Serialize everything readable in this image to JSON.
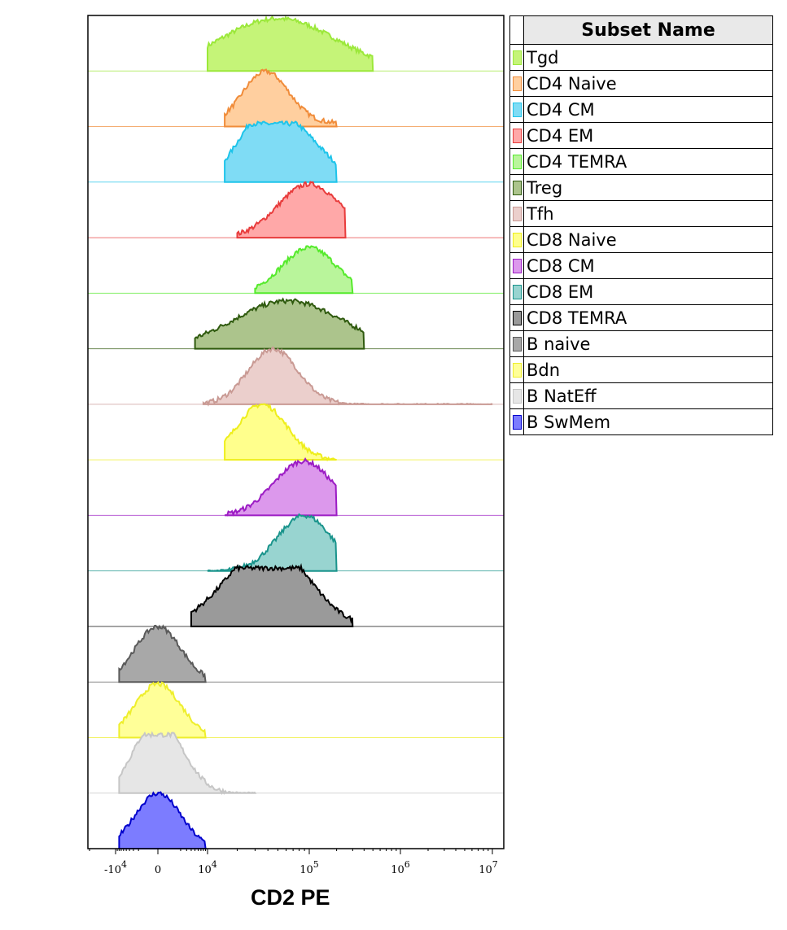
{
  "chart_data": {
    "type": "histogram",
    "xlabel": "CD2 PE",
    "x_scale": "biexponential",
    "x_ticks": [
      {
        "base": "-10",
        "exp": "4",
        "value": -10000
      },
      {
        "base": "0",
        "exp": "",
        "value": 0
      },
      {
        "base": "10",
        "exp": "4",
        "value": 10000
      },
      {
        "base": "10",
        "exp": "5",
        "value": 100000
      },
      {
        "base": "10",
        "exp": "6",
        "value": 1000000
      },
      {
        "base": "10",
        "exp": "7",
        "value": 10000000
      }
    ],
    "legend_title": "Subset Name",
    "legend_position": "right",
    "series": [
      {
        "name": "Tgd",
        "color": "#c5f478",
        "stroke": "#9be83a",
        "peaks": [
          {
            "x": 50000,
            "h": 0.9,
            "w": 0.14
          }
        ],
        "lo": 10000,
        "hi": 500000
      },
      {
        "name": "CD4 Naive",
        "color": "#ffcf9f",
        "stroke": "#f08c3a",
        "peaks": [
          {
            "x": 38000,
            "h": 0.88,
            "w": 0.055
          },
          {
            "x": 70000,
            "h": 0.07,
            "w": 0.15
          }
        ],
        "lo": 15000,
        "hi": 200000
      },
      {
        "name": "CD4 CM",
        "color": "#7fdcf5",
        "stroke": "#1ec4ea",
        "peaks": [
          {
            "x": 33000,
            "h": 0.9,
            "w": 0.06
          },
          {
            "x": 80000,
            "h": 0.72,
            "w": 0.07
          }
        ],
        "lo": 15000,
        "hi": 200000
      },
      {
        "name": "CD4 EM",
        "color": "#ffa8a8",
        "stroke": "#e83c3c",
        "peaks": [
          {
            "x": 100000,
            "h": 0.92,
            "w": 0.075
          }
        ],
        "lo": 20000,
        "hi": 250000
      },
      {
        "name": "CD4 TEMRA",
        "color": "#b9f59b",
        "stroke": "#55ea2c",
        "peaks": [
          {
            "x": 100000,
            "h": 0.78,
            "w": 0.065
          }
        ],
        "lo": 30000,
        "hi": 300000
      },
      {
        "name": "Treg",
        "color": "#acc48c",
        "stroke": "#2f5a0e",
        "peaks": [
          {
            "x": 62000,
            "h": 0.82,
            "w": 0.13
          }
        ],
        "lo": 5000,
        "hi": 400000
      },
      {
        "name": "Tfh",
        "color": "#ebcfcc",
        "stroke": "#c99a94",
        "peaks": [
          {
            "x": 45000,
            "h": 0.95,
            "w": 0.06
          }
        ],
        "lo": 8000,
        "hi": 10000000.0
      },
      {
        "name": "CD8 Naive",
        "color": "#ffff8c",
        "stroke": "#eeee1c",
        "peaks": [
          {
            "x": 35000,
            "h": 0.95,
            "w": 0.06
          }
        ],
        "lo": 15000,
        "hi": 200000
      },
      {
        "name": "CD8 CM",
        "color": "#dc98ec",
        "stroke": "#9c1cc4",
        "peaks": [
          {
            "x": 88000,
            "h": 0.93,
            "w": 0.07
          }
        ],
        "lo": 15000,
        "hi": 200000
      },
      {
        "name": "CD8 EM",
        "color": "#98d4d0",
        "stroke": "#1a948c",
        "peaks": [
          {
            "x": 90000,
            "h": 0.95,
            "w": 0.065
          }
        ],
        "lo": 10000,
        "hi": 200000
      },
      {
        "name": "CD8 TEMRA",
        "color": "#9a9a9a",
        "stroke": "#000000",
        "peaks": [
          {
            "x": 28000,
            "h": 0.86,
            "w": 0.09
          },
          {
            "x": 60000,
            "h": 0.7,
            "w": 0.08
          }
        ],
        "lo": 4000,
        "hi": 300000
      },
      {
        "name": "B naive",
        "color": "#a8a8a8",
        "stroke": "#5a5a5a",
        "peaks": [
          {
            "x": 0,
            "h": 0.95,
            "w": 0.055
          }
        ],
        "lo": -8000,
        "hi": 9000
      },
      {
        "name": "Bdn",
        "color": "#ffff98",
        "stroke": "#eeee2c",
        "peaks": [
          {
            "x": 0,
            "h": 0.92,
            "w": 0.055
          }
        ],
        "lo": -8000,
        "hi": 9000
      },
      {
        "name": "B NatEff",
        "color": "#e6e6e6",
        "stroke": "#c6c6c6",
        "peaks": [
          {
            "x": -500,
            "h": 0.92,
            "w": 0.05
          },
          {
            "x": 1200,
            "h": 0.5,
            "w": 0.05
          }
        ],
        "lo": -8000,
        "hi": 30000
      },
      {
        "name": "B SwMem",
        "color": "#7c7cff",
        "stroke": "#0000cc",
        "peaks": [
          {
            "x": 0,
            "h": 0.95,
            "w": 0.055
          }
        ],
        "lo": -8000,
        "hi": 9000
      }
    ]
  }
}
